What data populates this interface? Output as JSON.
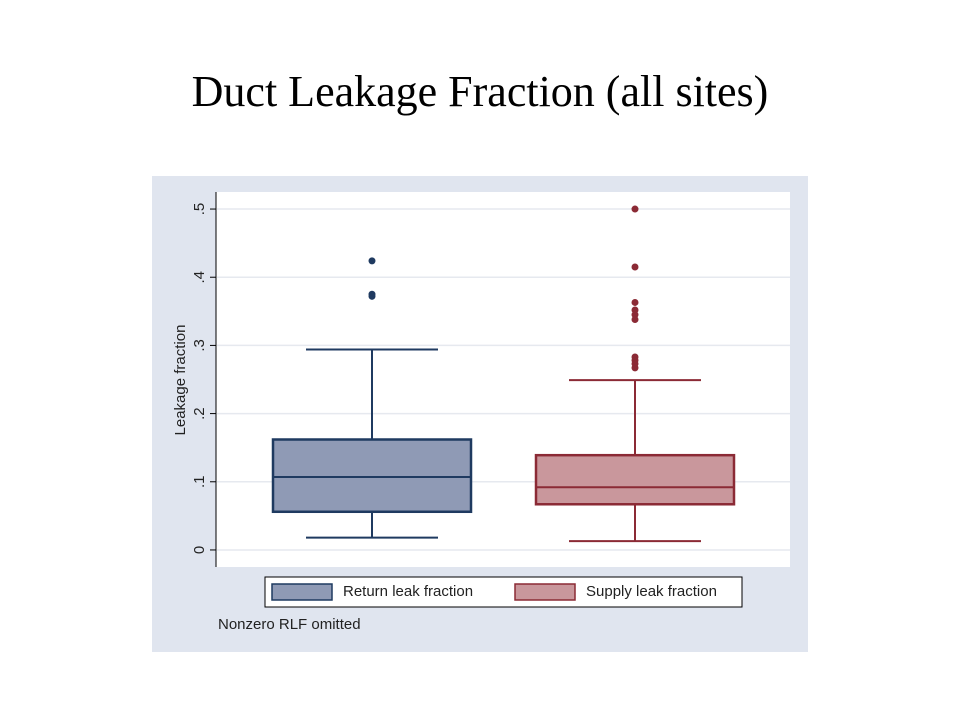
{
  "chart_data": {
    "type": "box",
    "title": "Duct Leakage Fraction (all sites)",
    "y_label": "Leakage fraction",
    "note": "Nonzero RLF omitted",
    "ylim": [
      -0.025,
      0.525
    ],
    "yticks": [
      0,
      {
        "value": 0.1,
        "label": ".1"
      },
      {
        "value": 0.2,
        "label": ".2"
      },
      {
        "value": 0.3,
        "label": ".3"
      },
      {
        "value": 0.4,
        "label": ".4"
      },
      {
        "value": 0.5,
        "label": ".5"
      }
    ],
    "grid": true,
    "series": [
      {
        "name": "Return leak fraction",
        "color": "#8f9ab5",
        "edge_color": "#1f3a60",
        "whislo": 0.018,
        "q1": 0.056,
        "med": 0.107,
        "q3": 0.162,
        "whishi": 0.294,
        "fliers": [
          0.424,
          0.375,
          0.372
        ]
      },
      {
        "name": "Supply leak fraction",
        "color": "#c9979c",
        "edge_color": "#8b2a35",
        "whislo": 0.013,
        "q1": 0.067,
        "med": 0.092,
        "q3": 0.139,
        "whishi": 0.249,
        "fliers": [
          0.5,
          0.415,
          0.363,
          0.352,
          0.345,
          0.338,
          0.283,
          0.278,
          0.273,
          0.267
        ]
      }
    ]
  }
}
